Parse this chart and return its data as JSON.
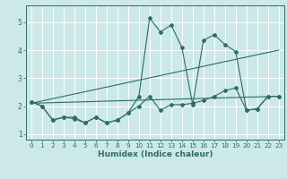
{
  "xlabel": "Humidex (Indice chaleur)",
  "xlim": [
    -0.5,
    23.5
  ],
  "ylim": [
    0.8,
    5.6
  ],
  "bg_color": "#cce8e8",
  "line_color": "#2e6b6b",
  "grid_color": "#ffffff",
  "xticks": [
    0,
    1,
    2,
    3,
    4,
    5,
    6,
    7,
    8,
    9,
    10,
    11,
    12,
    13,
    14,
    15,
    16,
    17,
    18,
    19,
    20,
    21,
    22,
    23
  ],
  "yticks": [
    1,
    2,
    3,
    4,
    5
  ],
  "series1_x": [
    0,
    1,
    2,
    3,
    4,
    5,
    6,
    7,
    8,
    9,
    10,
    11,
    12,
    13,
    14,
    15,
    16,
    17,
    18,
    19,
    20,
    21,
    22,
    23
  ],
  "series1_y": [
    2.15,
    2.0,
    1.5,
    1.6,
    1.6,
    1.4,
    1.6,
    1.4,
    1.5,
    1.75,
    2.35,
    5.15,
    4.65,
    4.9,
    4.1,
    2.05,
    4.35,
    4.55,
    4.2,
    3.95,
    1.85,
    1.9,
    2.35,
    2.35
  ],
  "trend1_x": [
    0,
    23
  ],
  "trend1_y": [
    2.1,
    2.35
  ],
  "trend2_x": [
    0,
    23
  ],
  "trend2_y": [
    2.1,
    4.0
  ],
  "series2_x": [
    0,
    1,
    2,
    3,
    4,
    5,
    6,
    7,
    8,
    9,
    10,
    11,
    12,
    13,
    14,
    15,
    16,
    17,
    18,
    19,
    20,
    21,
    22,
    23
  ],
  "series2_y": [
    2.15,
    2.0,
    1.5,
    1.6,
    1.55,
    1.4,
    1.6,
    1.4,
    1.5,
    1.75,
    2.0,
    2.35,
    1.85,
    2.05,
    2.05,
    2.1,
    2.2,
    2.35,
    2.55,
    2.65,
    1.85,
    1.9,
    2.35,
    2.35
  ]
}
